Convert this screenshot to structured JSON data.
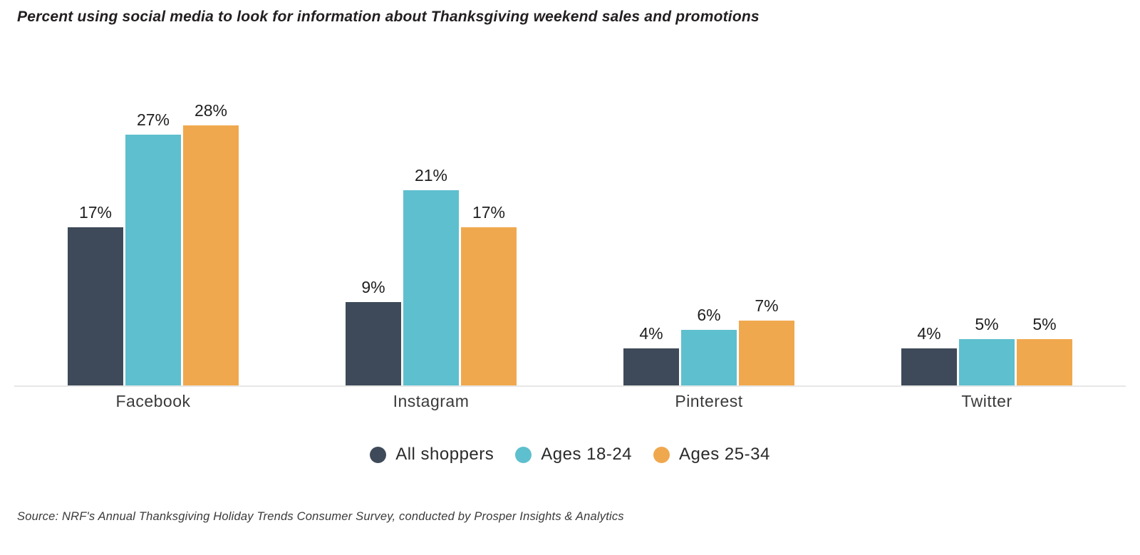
{
  "title": "Percent using social media to look for information about Thanksgiving weekend sales and promotions",
  "source": "Source:  NRF's Annual Thanksgiving Holiday Trends Consumer Survey, conducted by Prosper Insights & Analytics",
  "colors": {
    "all_shoppers": "#3e4a59",
    "ages_18_24": "#5ebfce",
    "ages_25_34": "#f0a84e",
    "baseline": "#e7e7e7",
    "text": "#231f20"
  },
  "chart_data": {
    "type": "bar",
    "title": "Percent using social media to look for information about Thanksgiving weekend sales and promotions",
    "categories": [
      "Facebook",
      "Instagram",
      "Pinterest",
      "Twitter"
    ],
    "series": [
      {
        "name": "All shoppers",
        "color": "#3e4a59",
        "values": [
          17,
          9,
          4,
          4
        ]
      },
      {
        "name": "Ages 18-24",
        "color": "#5ebfce",
        "values": [
          27,
          21,
          6,
          5
        ]
      },
      {
        "name": "Ages 25-34",
        "color": "#f0a84e",
        "values": [
          28,
          17,
          7,
          5
        ]
      }
    ],
    "value_format": "percent",
    "data_labels": true,
    "xlabel": "",
    "ylabel": "",
    "ylim": [
      0,
      34
    ],
    "grid": false,
    "legend_position": "bottom"
  }
}
